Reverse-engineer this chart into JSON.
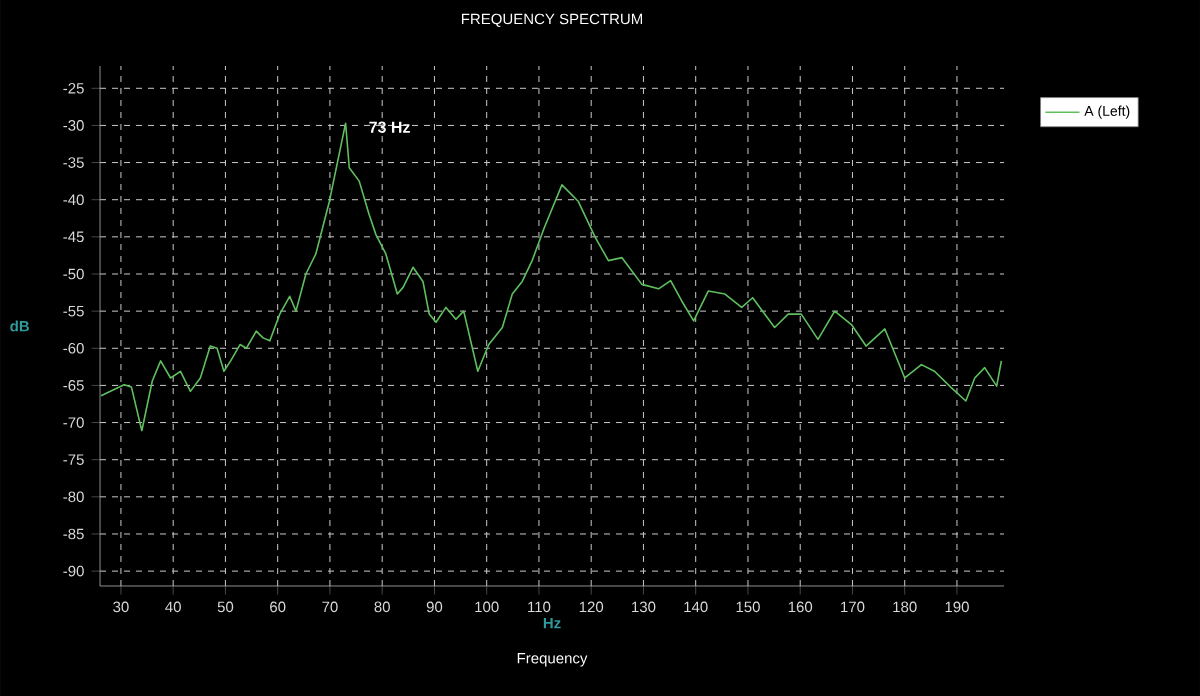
{
  "chart_data": {
    "type": "line",
    "title": "FREQUENCY SPECTRUM",
    "xlabel": "Hz",
    "ylabel": "dB",
    "annotations": [
      {
        "text": "73 Hz",
        "x": 73,
        "y": -29.7
      },
      "Frequency"
    ],
    "xlim": [
      26,
      199
    ],
    "ylim": [
      -92,
      -22
    ],
    "xticks": [
      30,
      40,
      50,
      60,
      70,
      80,
      90,
      100,
      110,
      120,
      130,
      140,
      150,
      160,
      170,
      180,
      190
    ],
    "yticks": [
      -25,
      -30,
      -35,
      -40,
      -45,
      -50,
      -55,
      -60,
      -65,
      -70,
      -75,
      -80,
      -85,
      -90
    ],
    "grid": true,
    "legend": "top right",
    "marker": "none",
    "line_style": "solid",
    "series": [
      {
        "name": "A (Left)",
        "color": "#5fbf5f",
        "x": [
          26.2,
          30.6,
          32,
          34,
          36,
          37.6,
          39.5,
          41.4,
          43.3,
          45.2,
          47.1,
          48.4,
          49.7,
          51,
          52.8,
          54,
          55.9,
          57.2,
          58.5,
          60.4,
          62.3,
          63.5,
          65.4,
          67.3,
          69.9,
          73,
          73.7,
          75.6,
          77.5,
          78.8,
          80.7,
          82.9,
          84,
          85.9,
          87.8,
          89,
          90.3,
          92.2,
          94.1,
          95.6,
          98.3,
          100.4,
          103,
          104.9,
          106.8,
          108.7,
          111,
          114.4,
          117.5,
          120.8,
          123.3,
          125.9,
          129.7,
          132.9,
          135.2,
          137.3,
          139.6,
          142.4,
          145.6,
          148.8,
          150.9,
          155.1,
          157.7,
          160.2,
          163.4,
          166.6,
          169.8,
          172.6,
          176.2,
          180,
          183.2,
          185.7,
          188.9,
          191.7,
          193.4,
          195.3,
          197.6,
          198.5
        ],
        "values": [
          -66.4,
          -64.9,
          -65.2,
          -71.1,
          -64.4,
          -61.7,
          -64,
          -63.1,
          -65.8,
          -64,
          -59.7,
          -60,
          -63.1,
          -61.7,
          -59.5,
          -60,
          -57.7,
          -58.6,
          -59,
          -55.4,
          -53,
          -55,
          -50,
          -47.3,
          -40.2,
          -29.7,
          -35.7,
          -37.5,
          -42,
          -44.7,
          -47.3,
          -52.7,
          -51.8,
          -49.1,
          -51,
          -55.4,
          -56.5,
          -54.5,
          -56.1,
          -55,
          -63.1,
          -59.5,
          -57.2,
          -52.7,
          -51,
          -48.2,
          -43.8,
          -38,
          -40.2,
          -45.1,
          -48.2,
          -47.8,
          -51.4,
          -52,
          -50.9,
          -53.6,
          -56.3,
          -52.3,
          -52.7,
          -54.5,
          -53.2,
          -57.2,
          -55.4,
          -55.4,
          -58.8,
          -55,
          -56.8,
          -59.7,
          -57.4,
          -64,
          -62.2,
          -63.1,
          -65.3,
          -67.1,
          -64,
          -62.6,
          -65.1,
          -61.7
        ]
      }
    ]
  }
}
